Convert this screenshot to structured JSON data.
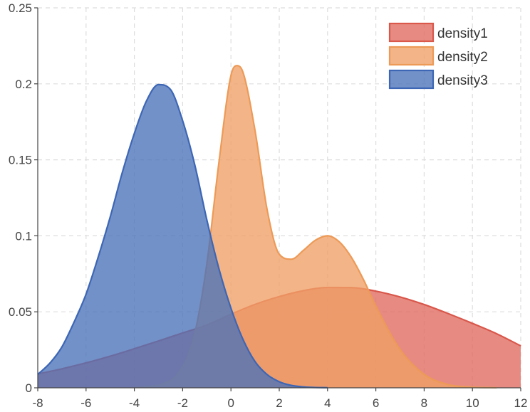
{
  "chart_data": {
    "type": "area",
    "title": "",
    "xlabel": "",
    "ylabel": "",
    "xlim": [
      -8,
      12
    ],
    "ylim": [
      0,
      0.25
    ],
    "x_ticks": [
      -8,
      -6,
      -4,
      -2,
      0,
      2,
      4,
      6,
      8,
      10,
      12
    ],
    "x_tick_labels": [
      "-8",
      "-6",
      "-4",
      "-2",
      "0",
      "2",
      "4",
      "6",
      "8",
      "10",
      "12"
    ],
    "y_ticks": [
      0,
      0.05,
      0.1,
      0.15,
      0.2,
      0.25
    ],
    "y_tick_labels": [
      "0",
      "0.05",
      "0.1",
      "0.15",
      "0.2",
      "0.25"
    ],
    "grid": true,
    "legend_position": "top-right",
    "series": [
      {
        "name": "density1",
        "fill": "#e06a5f",
        "stroke": "#d9574b",
        "x": [
          -8,
          -7,
          -6,
          -5,
          -4,
          -3,
          -2,
          -1,
          0,
          1,
          2,
          3,
          4,
          5,
          6,
          7,
          8,
          9,
          10,
          11,
          12
        ],
        "values": [
          0.0091,
          0.0125,
          0.0164,
          0.0208,
          0.0257,
          0.0308,
          0.0361,
          0.0413,
          0.0484,
          0.0549,
          0.06,
          0.0639,
          0.066,
          0.0659,
          0.0636,
          0.0598,
          0.0548,
          0.0488,
          0.0424,
          0.0356,
          0.0276
        ]
      },
      {
        "name": "density2",
        "fill": "#f0a066",
        "stroke": "#ed9a57",
        "x": [
          -4,
          -3,
          -2,
          -1.5,
          -1,
          -0.5,
          0,
          0.25,
          0.5,
          1,
          1.5,
          2,
          2.5,
          3,
          3.5,
          4,
          4.5,
          5,
          5.5,
          6,
          7,
          8,
          9,
          10,
          11
        ],
        "values": [
          0.0004,
          0.0018,
          0.0138,
          0.0357,
          0.0814,
          0.148,
          0.2055,
          0.212,
          0.2075,
          0.169,
          0.117,
          0.0879,
          0.0846,
          0.0904,
          0.0971,
          0.1,
          0.0958,
          0.0855,
          0.0708,
          0.0537,
          0.0252,
          0.0088,
          0.0021,
          0.0004,
          0.0001
        ]
      },
      {
        "name": "density3",
        "fill": "#4a72b8",
        "stroke": "#3d66b5",
        "x": [
          -8,
          -7.5,
          -7,
          -6.5,
          -6,
          -5.5,
          -5,
          -4.5,
          -4,
          -3.5,
          -3,
          -2.5,
          -2,
          -1.5,
          -1,
          -0.5,
          0,
          0.5,
          1,
          1.5,
          2,
          2.5,
          3,
          3.5,
          4
        ],
        "values": [
          0.0088,
          0.0162,
          0.0269,
          0.0431,
          0.0616,
          0.0859,
          0.1124,
          0.1416,
          0.1674,
          0.1887,
          0.1995,
          0.1962,
          0.1757,
          0.1468,
          0.1106,
          0.0785,
          0.0524,
          0.0318,
          0.0172,
          0.0087,
          0.004,
          0.0016,
          0.0006,
          0.0002,
          0.0001
        ]
      }
    ]
  }
}
